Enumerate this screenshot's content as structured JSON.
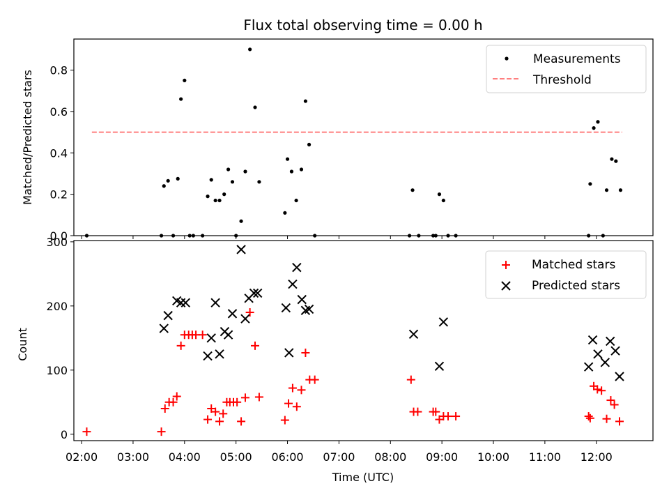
{
  "chart_data": [
    {
      "type": "scatter",
      "title": "Flux total observing time = 0.00 h",
      "xlabel": "",
      "ylabel": "Matched/Predicted stars",
      "xlim": [
        1.85,
        13.1
      ],
      "ylim": [
        0,
        0.95
      ],
      "yticks": [
        0.0,
        0.2,
        0.4,
        0.6,
        0.8
      ],
      "ytick_labels": [
        "0.0",
        "0.2",
        "0.4",
        "0.6",
        "0.8"
      ],
      "legend": [
        "Measurements",
        "Threshold"
      ],
      "legend_position": "top-right",
      "threshold": {
        "name": "Threshold",
        "value": 0.5,
        "x_start": 2.2,
        "x_end": 12.5,
        "color": "#ff7f7f"
      },
      "series": [
        {
          "name": "Measurements",
          "color": "#000000",
          "x": [
            2.1,
            3.55,
            3.6,
            3.68,
            3.78,
            3.87,
            3.93,
            4.0,
            4.1,
            4.17,
            4.35,
            4.45,
            4.52,
            4.6,
            4.68,
            4.77,
            4.85,
            4.93,
            5.0,
            5.1,
            5.18,
            5.27,
            5.37,
            5.45,
            5.95,
            6.0,
            6.08,
            6.17,
            6.27,
            6.35,
            6.42,
            6.53,
            8.37,
            8.43,
            8.55,
            8.83,
            8.88,
            8.95,
            9.03,
            9.12,
            9.27,
            11.85,
            11.88,
            11.95,
            12.03,
            12.13,
            12.2,
            12.3,
            12.38,
            12.47
          ],
          "y": [
            0.0,
            0.0,
            0.24,
            0.265,
            0.0,
            0.275,
            0.66,
            0.75,
            0.0,
            0.0,
            0.0,
            0.19,
            0.27,
            0.17,
            0.17,
            0.2,
            0.32,
            0.26,
            0.0,
            0.07,
            0.31,
            0.9,
            0.62,
            0.26,
            0.11,
            0.37,
            0.31,
            0.17,
            0.32,
            0.65,
            0.44,
            0.0,
            0.0,
            0.22,
            0.0,
            0.0,
            0.0,
            0.2,
            0.17,
            0.0,
            0.0,
            0.0,
            0.25,
            0.52,
            0.55,
            0.0,
            0.22,
            0.37,
            0.36,
            0.22
          ]
        }
      ]
    },
    {
      "type": "scatter",
      "title": "",
      "xlabel": "Time (UTC)",
      "ylabel": "Count",
      "xlim": [
        1.85,
        13.1
      ],
      "ylim": [
        -10,
        302
      ],
      "yticks": [
        0,
        100,
        200,
        300
      ],
      "ytick_labels": [
        "0",
        "100",
        "200",
        "300"
      ],
      "xticks": [
        2,
        3,
        4,
        5,
        6,
        7,
        8,
        9,
        10,
        11,
        12
      ],
      "xtick_labels": [
        "02:00",
        "03:00",
        "04:00",
        "05:00",
        "06:00",
        "07:00",
        "08:00",
        "09:00",
        "10:00",
        "11:00",
        "12:00"
      ],
      "legend": [
        "Matched stars",
        "Predicted stars"
      ],
      "legend_position": "top-right",
      "series": [
        {
          "name": "Matched stars",
          "marker": "+",
          "color": "#ff0000",
          "x": [
            2.1,
            3.55,
            3.62,
            3.7,
            3.78,
            3.85,
            3.93,
            4.0,
            4.08,
            4.15,
            4.22,
            4.35,
            4.45,
            4.52,
            4.6,
            4.68,
            4.75,
            4.82,
            4.88,
            4.95,
            5.02,
            5.1,
            5.18,
            5.27,
            5.37,
            5.45,
            5.95,
            6.02,
            6.1,
            6.18,
            6.27,
            6.35,
            6.43,
            6.53,
            8.4,
            8.45,
            8.53,
            8.83,
            8.88,
            8.95,
            9.03,
            9.12,
            9.27,
            11.85,
            11.88,
            11.95,
            12.02,
            12.1,
            12.2,
            12.28,
            12.35,
            12.45
          ],
          "y": [
            4,
            4,
            40,
            50,
            50,
            59,
            138,
            155,
            155,
            155,
            155,
            155,
            23,
            40,
            35,
            20,
            32,
            50,
            50,
            50,
            50,
            20,
            57,
            190,
            138,
            58,
            22,
            48,
            72,
            43,
            69,
            127,
            85,
            85,
            85,
            35,
            35,
            35,
            35,
            23,
            28,
            28,
            28,
            28,
            25,
            75,
            70,
            68,
            24,
            53,
            46,
            20
          ]
        },
        {
          "name": "Predicted stars",
          "marker": "x",
          "color": "#000000",
          "x": [
            3.6,
            3.68,
            3.85,
            3.93,
            4.02,
            4.45,
            4.52,
            4.6,
            4.68,
            4.78,
            4.85,
            4.93,
            5.1,
            5.18,
            5.25,
            5.35,
            5.42,
            5.97,
            6.03,
            6.1,
            6.18,
            6.28,
            6.35,
            6.42,
            8.45,
            8.95,
            9.03,
            11.85,
            11.93,
            12.03,
            12.17,
            12.27,
            12.37,
            12.45
          ],
          "y": [
            165,
            185,
            208,
            205,
            205,
            122,
            150,
            205,
            125,
            160,
            155,
            188,
            288,
            180,
            212,
            220,
            220,
            197,
            127,
            234,
            260,
            210,
            193,
            195,
            156,
            106,
            175,
            105,
            147,
            125,
            112,
            145,
            130,
            90
          ]
        }
      ]
    }
  ]
}
